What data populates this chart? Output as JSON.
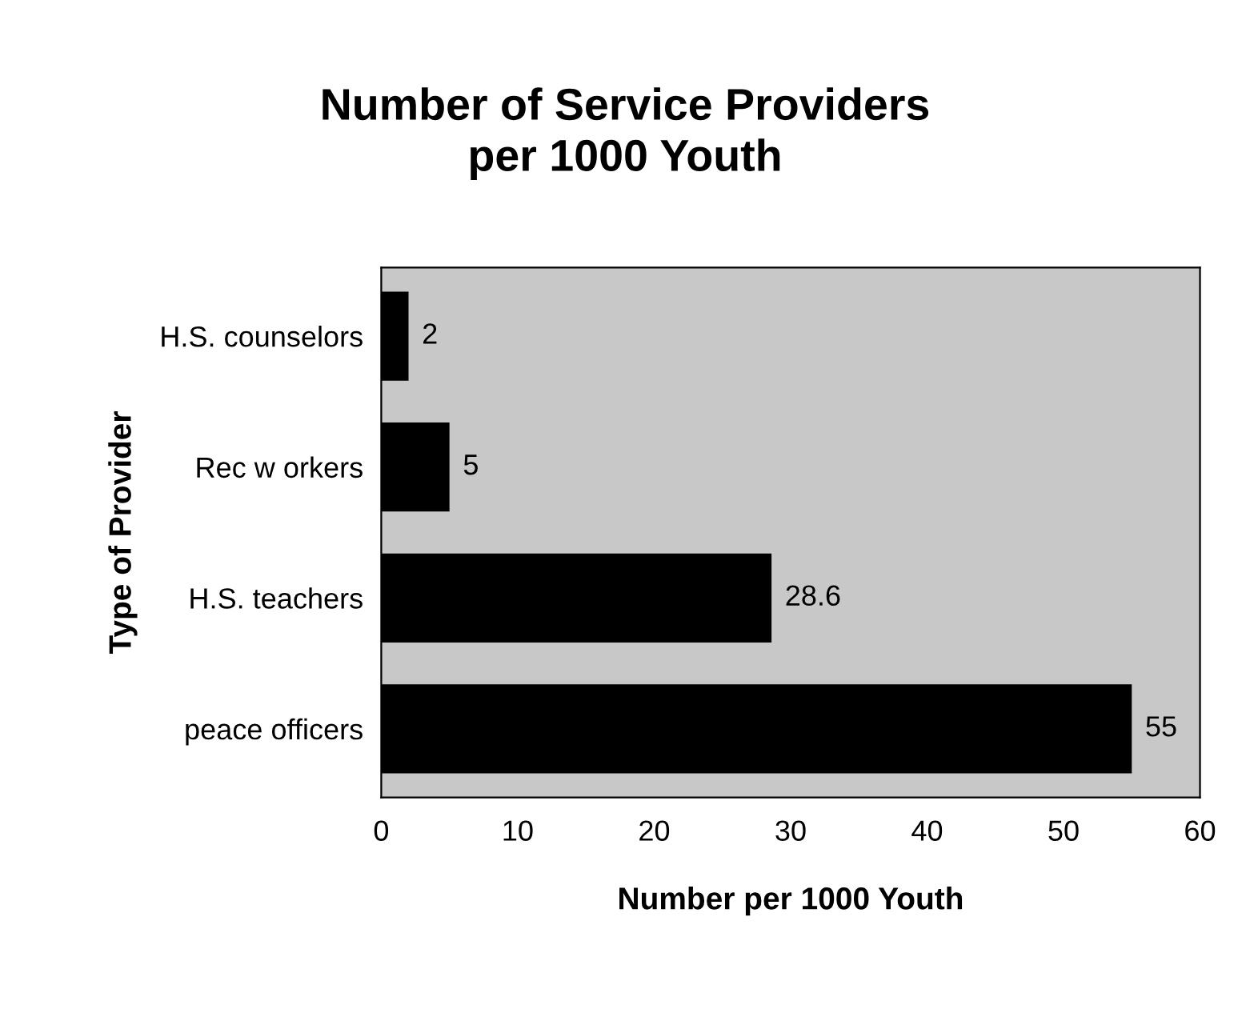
{
  "chart_data": {
    "type": "bar",
    "orientation": "horizontal",
    "title": "Number of Service Providers\nper 1000 Youth",
    "xlabel": "Number per 1000 Youth",
    "ylabel": "Type of Provider",
    "categories": [
      "H.S. counselors",
      "Rec w orkers",
      "H.S. teachers",
      "peace officers"
    ],
    "values": [
      2,
      5,
      28.6,
      55
    ],
    "color": "#000000",
    "data_labels": true,
    "xlim": [
      0,
      60
    ],
    "xticks": [
      0,
      10,
      20,
      30,
      40,
      50,
      60
    ],
    "grid": false,
    "legend": false
  }
}
